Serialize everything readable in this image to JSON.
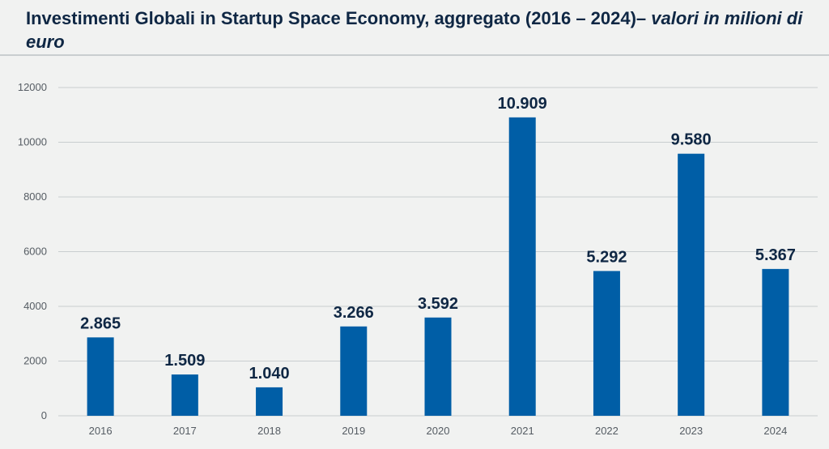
{
  "title": {
    "main": "Investimenti Globali in Startup Space Economy, aggregato (2016 – 2024)–",
    "subtitle": "valori in milioni di euro"
  },
  "colors": {
    "bar": "#005ea6",
    "grid": "#c9ced0",
    "text": "#0f2744",
    "background": "#f1f2f1"
  },
  "chart_data": {
    "type": "bar",
    "categories": [
      "2016",
      "2017",
      "2018",
      "2019",
      "2020",
      "2021",
      "2022",
      "2023",
      "2024"
    ],
    "values": [
      2865,
      1509,
      1040,
      3266,
      3592,
      10909,
      5292,
      9580,
      5367
    ],
    "data_labels": [
      "2.865",
      "1.509",
      "1.040",
      "3.266",
      "3.592",
      "10.909",
      "5.292",
      "9.580",
      "5.367"
    ],
    "y_ticks": [
      0,
      2000,
      4000,
      6000,
      8000,
      10000,
      12000
    ],
    "ylim": [
      0,
      12000
    ],
    "grid": true,
    "legend": "none"
  }
}
